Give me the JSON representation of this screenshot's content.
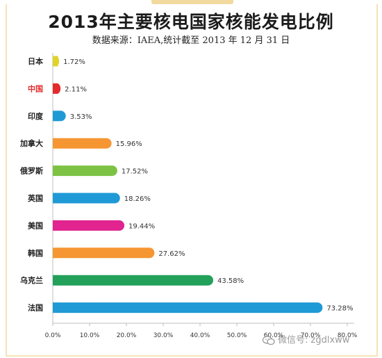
{
  "title": "2013年主要核电国家核能发电比例",
  "subtitle": "数据来源：IAEA,统计截至 2013 年 12 月 31 日",
  "watermark": "微信号: zgdlxww",
  "chart_data": {
    "type": "bar",
    "orientation": "horizontal",
    "title": "2013年主要核电国家核能发电比例",
    "subtitle": "数据来源：IAEA,统计截至 2013 年 12 月 31 日",
    "categories": [
      "日本",
      "中国",
      "印度",
      "加拿大",
      "俄罗斯",
      "英国",
      "美国",
      "韩国",
      "乌克兰",
      "法国"
    ],
    "values": [
      1.72,
      2.11,
      3.53,
      15.96,
      17.52,
      18.26,
      19.44,
      27.62,
      43.58,
      73.28
    ],
    "value_labels": [
      "1.72%",
      "2.11%",
      "3.53%",
      "15.96%",
      "17.52%",
      "18.26%",
      "19.44%",
      "27.62%",
      "43.58%",
      "73.28%"
    ],
    "colors": [
      "#e0d32a",
      "#e42b2b",
      "#1f9ad6",
      "#f59632",
      "#7dc243",
      "#1f9ad6",
      "#e1248f",
      "#f59632",
      "#23a05a",
      "#1f9ad6"
    ],
    "highlight_label_color": "#e42b2b",
    "highlight_index": 1,
    "xlim": [
      0,
      80
    ],
    "x_ticks": [
      "0.0%",
      "10.0%",
      "20.0%",
      "30.0%",
      "40.0%",
      "50.0%",
      "60.0%",
      "70.0%",
      "80.0%"
    ],
    "x_tick_values": [
      0,
      10,
      20,
      30,
      40,
      50,
      60,
      70,
      80
    ],
    "grid": false,
    "legend": "none"
  }
}
